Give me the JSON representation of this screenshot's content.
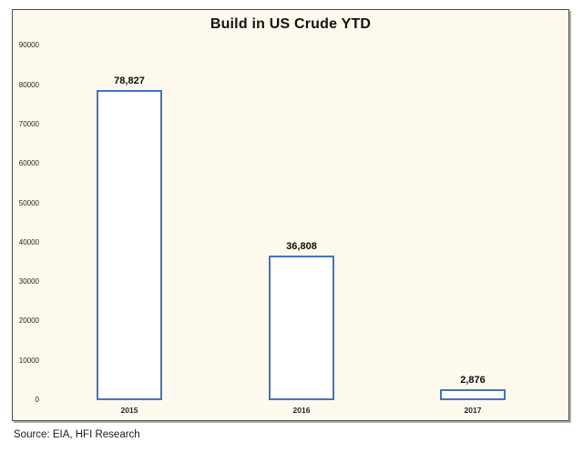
{
  "chart_data": {
    "type": "bar",
    "title": "Build in US Crude YTD",
    "categories": [
      "2015",
      "2016",
      "2017"
    ],
    "values": [
      78827,
      36808,
      2876
    ],
    "value_labels": [
      "78,827",
      "36,808",
      "2,876"
    ],
    "xlabel": "",
    "ylabel": "",
    "ylim": [
      0,
      90000
    ],
    "y_ticks": [
      0,
      10000,
      20000,
      30000,
      40000,
      50000,
      60000,
      70000,
      80000,
      90000
    ],
    "grid": false,
    "legend": false,
    "bar_fill": "#ffffff",
    "bar_border": "#4472c4"
  },
  "source": "Source: EIA, HFI Research",
  "colors": {
    "chart_background": "#fdf9ec",
    "frame_border": "#4d4d4d",
    "accent_blue": "#4472c4"
  }
}
